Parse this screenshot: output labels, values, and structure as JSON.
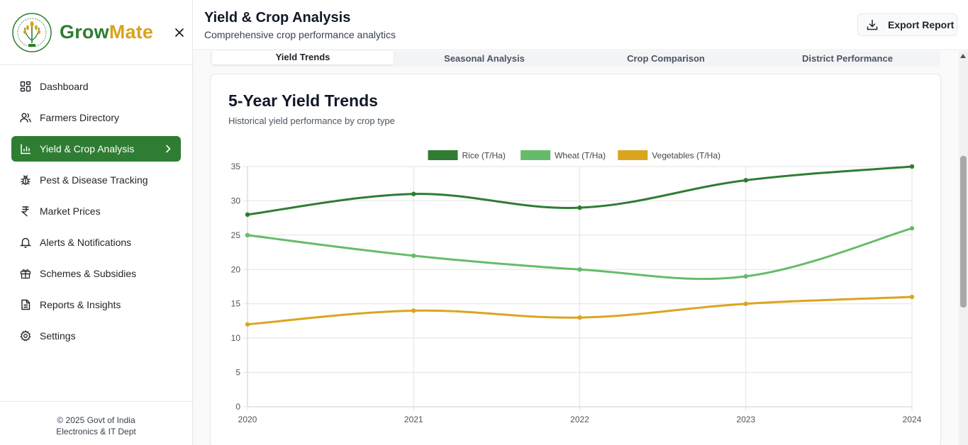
{
  "brand": {
    "name_part1": "Grow",
    "name_part2": "Mate",
    "logo_icon": "agriculture-seal-icon",
    "close_icon": "close-icon"
  },
  "sidebar": {
    "items": [
      {
        "label": "Dashboard",
        "icon": "dashboard-icon",
        "active": false
      },
      {
        "label": "Farmers Directory",
        "icon": "users-icon",
        "active": false
      },
      {
        "label": "Yield & Crop Analysis",
        "icon": "bar-chart-icon",
        "active": true
      },
      {
        "label": "Pest & Disease Tracking",
        "icon": "bug-icon",
        "active": false
      },
      {
        "label": "Market Prices",
        "icon": "rupee-icon",
        "active": false
      },
      {
        "label": "Alerts & Notifications",
        "icon": "bell-icon",
        "active": false
      },
      {
        "label": "Schemes & Subsidies",
        "icon": "gift-icon",
        "active": false
      },
      {
        "label": "Reports & Insights",
        "icon": "document-icon",
        "active": false
      },
      {
        "label": "Settings",
        "icon": "gear-icon",
        "active": false
      }
    ],
    "footer_line1": "© 2025 Govt of India",
    "footer_line2": "Electronics & IT Dept"
  },
  "header": {
    "title": "Yield & Crop Analysis",
    "subtitle": "Comprehensive crop performance analytics",
    "export_label": "Export Report",
    "export_icon": "download-icon"
  },
  "tabs": [
    {
      "label": "Yield Trends",
      "active": true
    },
    {
      "label": "Seasonal Analysis",
      "active": false
    },
    {
      "label": "Crop Comparison",
      "active": false
    },
    {
      "label": "District Performance",
      "active": false
    }
  ],
  "card": {
    "title": "5-Year Yield Trends",
    "subtitle": "Historical yield performance by crop type"
  },
  "colors": {
    "primary": "#2e7d32",
    "accent": "#d9a21b",
    "rice": "#2e7d32",
    "wheat": "#66bb6a",
    "vegetables": "#daa520"
  },
  "chart_data": {
    "type": "line",
    "title": "",
    "xlabel": "",
    "ylabel": "",
    "x": [
      "2020",
      "2021",
      "2022",
      "2023",
      "2024"
    ],
    "ylim": [
      0,
      35
    ],
    "yticks": [
      0,
      5,
      10,
      15,
      20,
      25,
      30,
      35
    ],
    "grid": true,
    "legend_position": "top-center",
    "series": [
      {
        "name": "Rice (T/Ha)",
        "values": [
          28,
          31,
          29,
          33,
          35
        ],
        "color": "#2e7d32"
      },
      {
        "name": "Wheat (T/Ha)",
        "values": [
          25,
          22,
          20,
          19,
          26
        ],
        "color": "#66bb6a"
      },
      {
        "name": "Vegetables (T/Ha)",
        "values": [
          12,
          14,
          13,
          15,
          16
        ],
        "color": "#daa520"
      }
    ]
  }
}
